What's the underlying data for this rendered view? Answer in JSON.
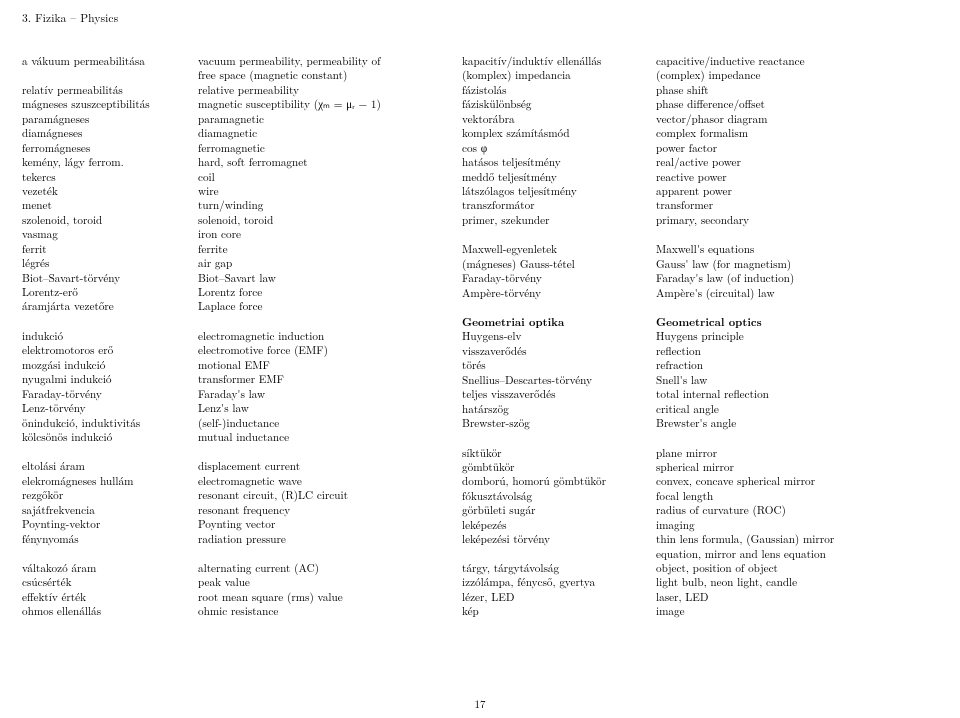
{
  "header": "3. Fizika – Physics",
  "pagenum": "17",
  "col1": {
    "g1": [
      "a vákuum permeabilitása",
      "",
      "relatív permeabilitás",
      "mágneses szuszceptibilitás",
      "paramágneses",
      "diamágneses",
      "ferromágneses",
      "kemény, lágy ferrom.",
      "tekercs",
      "vezeték",
      "menet",
      "szolenoid, toroid",
      "vasmag",
      "ferrit",
      "légrés",
      "Biot–Savart-törvény",
      "Lorentz-erő",
      "áramjárta vezetőre"
    ],
    "g2": [
      "indukció",
      "elektromotoros erő",
      "mozgási indukció",
      "nyugalmi indukció",
      "Faraday-törvény",
      "Lenz-törvény",
      "önindukció, induktivitás",
      "kölcsönös indukció"
    ],
    "g3": [
      "eltolási áram",
      "elekromágneses hullám",
      "rezgőkör",
      "sajátfrekvencia",
      "Poynting-vektor",
      "fénynyomás"
    ],
    "g4": [
      "váltakozó áram",
      "csúcsérték",
      "effektív érték",
      "ohmos ellenállás"
    ]
  },
  "col2": {
    "g1": [
      "vacuum permeability, permeability of",
      "free space (magnetic constant)",
      "relative permeability",
      "magnetic susceptibility (χₘ = μᵣ − 1)",
      "paramagnetic",
      "diamagnetic",
      "ferromagnetic",
      "hard, soft ferromagnet",
      "coil",
      "wire",
      "turn/winding",
      "solenoid, toroid",
      "iron core",
      "ferrite",
      "air gap",
      "Biot–Savart law",
      "Lorentz force",
      "Laplace force"
    ],
    "g2": [
      "electromagnetic induction",
      "electromotive force (EMF)",
      "motional EMF",
      "transformer EMF",
      "Faraday's law",
      "Lenz's law",
      "(self-)inductance",
      "mutual inductance"
    ],
    "g3": [
      "displacement current",
      "electromagnetic wave",
      "resonant circuit, (R)LC circuit",
      "resonant frequency",
      "Poynting vector",
      "radiation pressure"
    ],
    "g4": [
      "alternating current (AC)",
      "peak value",
      "root mean square (rms) value",
      "ohmic resistance"
    ]
  },
  "col3": {
    "g1": [
      "kapacitív/induktív ellenállás",
      "(komplex) impedancia",
      "fázistolás",
      "fáziskülönbség",
      "vektorábra",
      "komplex számításmód",
      "cos φ",
      "hatásos teljesítmény",
      "meddő teljesítmény",
      "látszólagos teljesítmény",
      "transzformátor",
      "primer, szekunder"
    ],
    "g2": [
      "Maxwell-egyenletek",
      "(mágneses) Gauss-tétel",
      "Faraday-törvény",
      "Ampère-törvény"
    ],
    "g3h": "Geometriai optika",
    "g3": [
      "Huygens-elv",
      "visszaverődés",
      "törés",
      "Snellius–Descartes-törvény",
      "teljes visszaverődés",
      "határszög",
      "Brewster-szög"
    ],
    "g4": [
      "síktükör",
      "gömbtükör",
      "domború, homorú gömbtükör",
      "fókusztávolság",
      "görbületi sugár",
      "leképezés",
      "leképezési törvény",
      "",
      "tárgy, tárgytávolság",
      "izzólámpa, fénycső, gyertya",
      "lézer, LED",
      "kép"
    ]
  },
  "col4": {
    "g1": [
      "capacitive/inductive reactance",
      "(complex) impedance",
      "phase shift",
      "phase difference/offset",
      "vector/phasor diagram",
      "complex formalism",
      "power factor",
      "real/active power",
      "reactive power",
      "apparent power",
      "transformer",
      "primary, secondary"
    ],
    "g2": [
      "Maxwell's equations",
      "Gauss' law (for magnetism)",
      "Faraday's law (of induction)",
      "Ampère's (circuital) law"
    ],
    "g3h": "Geometrical optics",
    "g3": [
      "Huygens principle",
      "reflection",
      "refraction",
      "Snell's law",
      "total internal reflection",
      "critical angle",
      "Brewster's angle"
    ],
    "g4": [
      "plane mirror",
      "spherical mirror",
      "convex, concave spherical mirror",
      "focal length",
      "radius of curvature (ROC)",
      "imaging",
      "thin lens formula, (Gaussian) mirror",
      "equation, mirror and lens equation",
      "object, position of object",
      "light bulb, neon light, candle",
      "laser, LED",
      "image"
    ]
  }
}
